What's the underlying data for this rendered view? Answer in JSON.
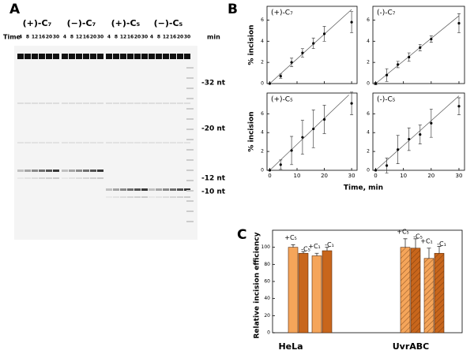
{
  "panel_labels": [
    "A",
    "B",
    "C"
  ],
  "gel": {
    "time_label": "Time",
    "unit_label": "min",
    "times": [
      4,
      8,
      12,
      16,
      20,
      30
    ],
    "groups": [
      "(+)-C₇",
      "(−)-C₇",
      "(+)-C₅",
      "(−)-C₅"
    ],
    "markers": [
      "-32 nt",
      "-20 nt",
      "-12 nt",
      "-10 nt"
    ]
  },
  "shared_xlabel": "Time, min",
  "chart_data": [
    {
      "type": "scatter",
      "title": "(+)-C₇",
      "ylabel": "% incision",
      "x": [
        0,
        4,
        8,
        12,
        16,
        20,
        30
      ],
      "values": [
        0,
        0.7,
        2.0,
        2.9,
        3.8,
        4.7,
        5.8
      ],
      "errors": [
        0,
        0.2,
        0.4,
        0.4,
        0.5,
        0.7,
        1.0
      ],
      "fit_x": [
        0,
        30
      ],
      "fit_values": [
        0,
        7.0
      ],
      "xlim": [
        -1,
        32
      ],
      "ylim": [
        0,
        7.3
      ],
      "xticks": [
        0,
        10,
        20,
        30
      ],
      "yticks": [
        0,
        2,
        4,
        6
      ],
      "color": "#000000"
    },
    {
      "type": "scatter",
      "title": "(-)-C₇",
      "x": [
        0,
        4,
        8,
        12,
        16,
        20,
        30
      ],
      "values": [
        0,
        0.8,
        1.8,
        2.5,
        3.4,
        4.2,
        5.7
      ],
      "errors": [
        0.1,
        0.6,
        0.3,
        0.4,
        0.3,
        0.3,
        0.9
      ],
      "fit_x": [
        0,
        30
      ],
      "fit_values": [
        0,
        6.4
      ],
      "xlim": [
        -1,
        32
      ],
      "ylim": [
        0,
        7.3
      ],
      "xticks": [
        0,
        10,
        20,
        30
      ],
      "yticks": [
        0,
        2,
        4,
        6
      ],
      "color": "#000000"
    },
    {
      "type": "scatter",
      "title": "(+)-C₅",
      "ylabel": "% incision",
      "x": [
        0,
        4,
        8,
        12,
        16,
        20,
        30
      ],
      "values": [
        0,
        0.6,
        2.1,
        3.5,
        4.4,
        5.4,
        7.1
      ],
      "errors": [
        0,
        0.5,
        1.5,
        1.8,
        2.0,
        1.5,
        1.2
      ],
      "fit_x": [
        0,
        29
      ],
      "fit_values": [
        0,
        8.0
      ],
      "xlim": [
        -1,
        32
      ],
      "ylim": [
        0,
        8.2
      ],
      "xticks": [
        0,
        10,
        20,
        30
      ],
      "yticks": [
        0,
        2,
        4,
        6
      ],
      "color": "#000000"
    },
    {
      "type": "scatter",
      "title": "(-)-C₅",
      "x": [
        0,
        4,
        8,
        12,
        16,
        20,
        30
      ],
      "values": [
        0,
        0.5,
        2.2,
        3.3,
        3.8,
        5.0,
        6.8
      ],
      "errors": [
        0,
        0.8,
        1.5,
        1.2,
        1.0,
        1.5,
        0.9
      ],
      "fit_x": [
        0,
        30
      ],
      "fit_values": [
        0,
        7.9
      ],
      "xlim": [
        -1,
        32
      ],
      "ylim": [
        0,
        8.2
      ],
      "xticks": [
        0,
        10,
        20,
        30
      ],
      "yticks": [
        0,
        2,
        4,
        6
      ],
      "color": "#000000"
    },
    {
      "type": "bar",
      "ylabel": "Relative incision efficiency",
      "categories": [
        "HeLa",
        "UvrABC"
      ],
      "hatch": [
        false,
        true
      ],
      "series": [
        {
          "name": "+C₅",
          "color": "#f5a55a",
          "values": [
            100,
            100
          ],
          "errors": [
            3,
            10
          ]
        },
        {
          "name": "-C₅",
          "color": "#c8661c",
          "values": [
            93,
            99
          ],
          "errors": [
            2,
            11
          ]
        },
        {
          "name": "+C₁",
          "color": "#f5a55a",
          "values": [
            90,
            87
          ],
          "errors": [
            3,
            12
          ]
        },
        {
          "name": "-C₁",
          "color": "#c8661c",
          "values": [
            96,
            93
          ],
          "errors": [
            4,
            8
          ]
        }
      ],
      "ylim": [
        0,
        120
      ],
      "yticks": [
        0,
        20,
        40,
        60,
        80,
        100
      ]
    }
  ]
}
